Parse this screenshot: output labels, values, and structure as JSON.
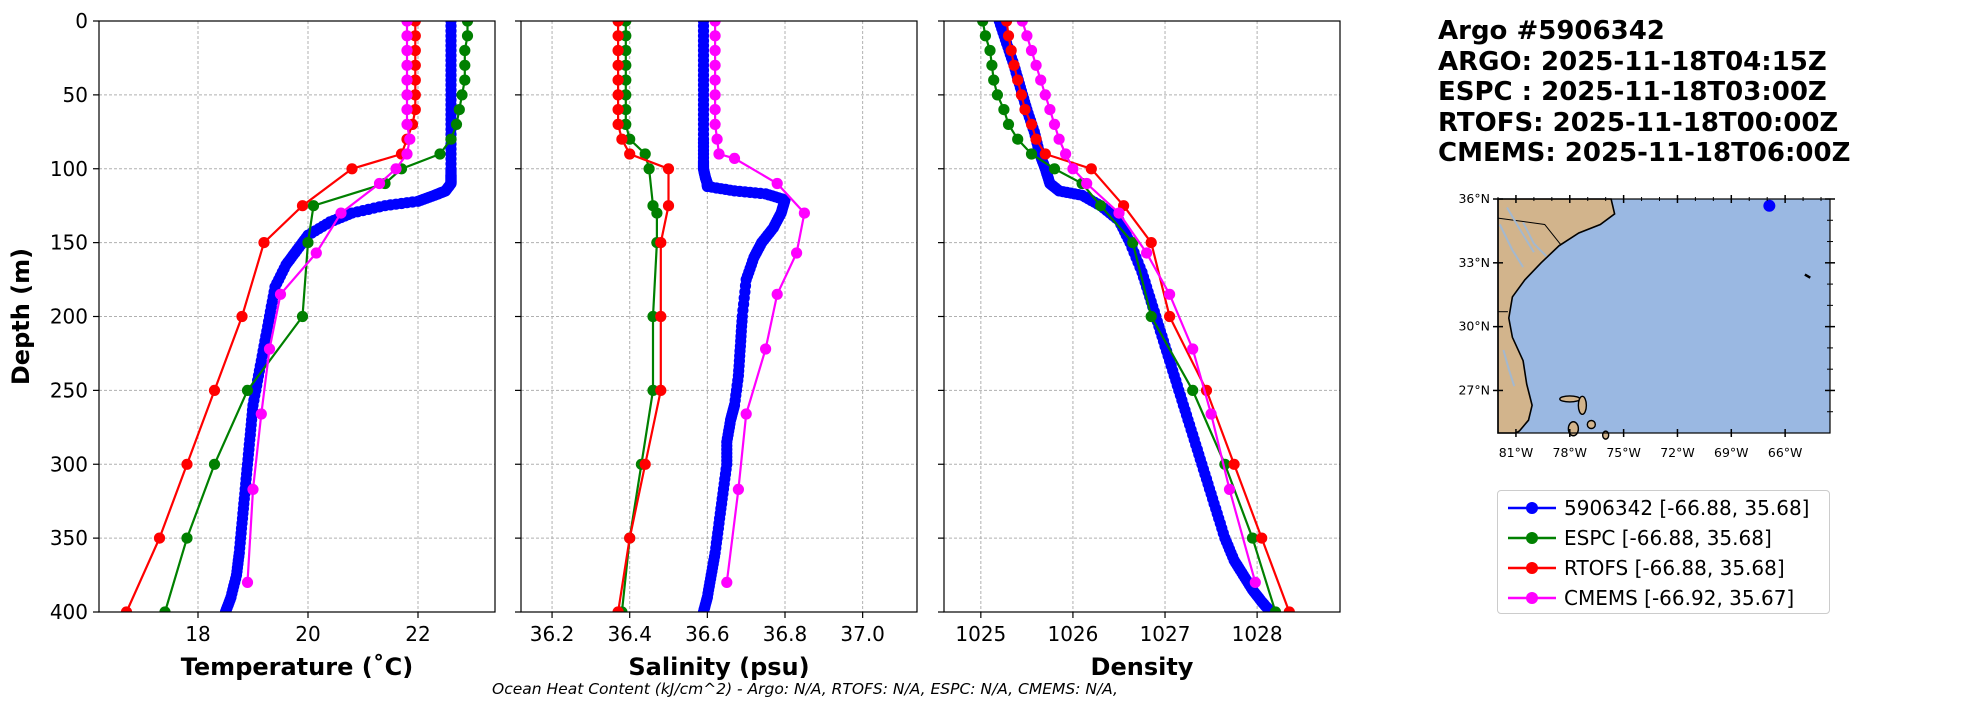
{
  "info": {
    "line1": "Argo #5906342",
    "line2": "ARGO: 2025-11-18T04:15Z",
    "line3": "ESPC : 2025-11-18T03:00Z",
    "line4": "RTOFS: 2025-11-18T00:00Z",
    "line5": "CMEMS: 2025-11-18T06:00Z"
  },
  "footer": "Ocean Heat Content (kJ/cm^2) - Argo: N/A,  RTOFS: N/A,  ESPC: N/A,  CMEMS: N/A,",
  "colors": {
    "argo": "#0000ff",
    "espc": "#008000",
    "rtofs": "#ff0000",
    "cmems": "#ff00ff",
    "land": "#d2b48c",
    "ocean": "#9ab8e2"
  },
  "legend": [
    {
      "label": "5906342 [-66.88, 35.68]",
      "color": "#0000ff"
    },
    {
      "label": "ESPC [-66.88, 35.68]",
      "color": "#008000"
    },
    {
      "label": "RTOFS [-66.88, 35.68]",
      "color": "#ff0000"
    },
    {
      "label": "CMEMS [-66.92, 35.67]",
      "color": "#ff00ff"
    }
  ],
  "chart_data": [
    {
      "type": "line",
      "title": "",
      "xlabel": "Temperature (˚C)",
      "ylabel": "Depth (m)",
      "xlim": [
        16.2,
        23.4
      ],
      "ylim": [
        400,
        0
      ],
      "xticks": [
        "18",
        "20",
        "22"
      ],
      "xtick_values": [
        18,
        20,
        22
      ],
      "yticks": [
        "0",
        "50",
        "100",
        "150",
        "200",
        "250",
        "300",
        "350",
        "400"
      ],
      "ytick_values": [
        0,
        50,
        100,
        150,
        200,
        250,
        300,
        350,
        400
      ],
      "grid": true,
      "series": [
        {
          "name": "5906342",
          "color": "#0000ff",
          "dense": true,
          "x": [
            22.6,
            22.6,
            22.6,
            22.6,
            22.6,
            22.6,
            22.6,
            22.6,
            22.6,
            22.6,
            22.5,
            22.3,
            22.0,
            21.4,
            20.8,
            20.4,
            20.0,
            19.8,
            19.6,
            19.4,
            19.3,
            19.2,
            19.1,
            19.0,
            18.95,
            18.9,
            18.85,
            18.8,
            18.75,
            18.7,
            18.6,
            18.5
          ],
          "y": [
            0,
            20,
            40,
            60,
            80,
            100,
            104,
            106,
            108,
            110,
            115,
            118,
            122,
            125,
            130,
            136,
            145,
            155,
            165,
            180,
            200,
            220,
            240,
            260,
            280,
            300,
            320,
            340,
            360,
            375,
            390,
            400
          ]
        },
        {
          "name": "ESPC",
          "color": "#008000",
          "dense": false,
          "x": [
            22.9,
            22.9,
            22.85,
            22.85,
            22.85,
            22.8,
            22.75,
            22.7,
            22.6,
            22.4,
            21.7,
            21.4,
            20.1,
            20.0,
            19.9,
            18.9,
            18.3,
            17.8,
            17.4
          ],
          "y": [
            0,
            10,
            20,
            30,
            40,
            50,
            60,
            70,
            80,
            90,
            100,
            110,
            125,
            150,
            200,
            250,
            300,
            350,
            400
          ]
        },
        {
          "name": "RTOFS",
          "color": "#ff0000",
          "dense": false,
          "x": [
            21.95,
            21.95,
            21.95,
            21.95,
            21.95,
            21.95,
            21.95,
            21.9,
            21.8,
            21.7,
            20.8,
            19.9,
            19.2,
            18.8,
            18.3,
            17.8,
            17.3,
            16.7
          ],
          "y": [
            0,
            10,
            20,
            30,
            40,
            50,
            60,
            70,
            80,
            90,
            100,
            125,
            150,
            200,
            250,
            300,
            350,
            400
          ]
        },
        {
          "name": "CMEMS",
          "color": "#ff00ff",
          "dense": false,
          "x": [
            21.8,
            21.8,
            21.8,
            21.8,
            21.8,
            21.8,
            21.8,
            21.8,
            21.85,
            21.8,
            21.6,
            21.3,
            20.6,
            20.15,
            19.5,
            19.3,
            19.15,
            19.0,
            18.9
          ],
          "y": [
            0,
            10,
            20,
            30,
            40,
            50,
            60,
            70,
            80,
            90,
            100,
            110,
            130,
            157,
            185,
            222,
            266,
            317,
            380
          ]
        }
      ]
    },
    {
      "type": "line",
      "title": "",
      "xlabel": "Salinity (psu)",
      "ylabel": "",
      "xlim": [
        36.12,
        37.14
      ],
      "ylim": [
        400,
        0
      ],
      "xticks": [
        "36.2",
        "36.4",
        "36.6",
        "36.8",
        "37.0"
      ],
      "xtick_values": [
        36.2,
        36.4,
        36.6,
        36.8,
        37.0
      ],
      "grid": true,
      "series": [
        {
          "name": "5906342",
          "color": "#0000ff",
          "dense": true,
          "x": [
            36.59,
            36.59,
            36.59,
            36.59,
            36.59,
            36.59,
            36.59,
            36.595,
            36.6,
            36.6,
            36.67,
            36.75,
            36.8,
            36.79,
            36.77,
            36.74,
            36.72,
            36.7,
            36.69,
            36.685,
            36.68,
            36.67,
            36.66,
            36.65,
            36.65,
            36.64,
            36.63,
            36.62,
            36.61,
            36.6,
            36.59
          ],
          "y": [
            0,
            20,
            40,
            60,
            80,
            95,
            100,
            106,
            110,
            112,
            115,
            117,
            121,
            130,
            140,
            150,
            160,
            175,
            200,
            220,
            240,
            260,
            270,
            285,
            300,
            320,
            340,
            360,
            375,
            390,
            400
          ]
        },
        {
          "name": "ESPC",
          "color": "#008000",
          "dense": false,
          "x": [
            36.39,
            36.39,
            36.39,
            36.39,
            36.39,
            36.39,
            36.39,
            36.39,
            36.4,
            36.44,
            36.45,
            36.46,
            36.47,
            36.47,
            36.46,
            36.46,
            36.43,
            36.4,
            36.38
          ],
          "y": [
            0,
            10,
            20,
            30,
            40,
            50,
            60,
            70,
            80,
            90,
            100,
            125,
            130,
            150,
            200,
            250,
            300,
            350,
            400
          ]
        },
        {
          "name": "RTOFS",
          "color": "#ff0000",
          "dense": false,
          "x": [
            36.37,
            36.37,
            36.37,
            36.37,
            36.37,
            36.37,
            36.37,
            36.37,
            36.38,
            36.4,
            36.5,
            36.5,
            36.48,
            36.48,
            36.48,
            36.44,
            36.4,
            36.37
          ],
          "y": [
            0,
            10,
            20,
            30,
            40,
            50,
            60,
            70,
            80,
            90,
            100,
            125,
            150,
            200,
            250,
            300,
            350,
            400
          ]
        },
        {
          "name": "CMEMS",
          "color": "#ff00ff",
          "dense": false,
          "x": [
            36.62,
            36.62,
            36.62,
            36.62,
            36.62,
            36.62,
            36.62,
            36.62,
            36.625,
            36.63,
            36.67,
            36.78,
            36.85,
            36.83,
            36.78,
            36.75,
            36.7,
            36.68,
            36.65
          ],
          "y": [
            0,
            10,
            20,
            30,
            40,
            50,
            60,
            70,
            80,
            90,
            93,
            110,
            130,
            157,
            185,
            222,
            266,
            317,
            380
          ]
        }
      ]
    },
    {
      "type": "line",
      "title": "",
      "xlabel": "Density",
      "ylabel": "",
      "xlim": [
        1024.6,
        1028.9
      ],
      "ylim": [
        400,
        0
      ],
      "xticks": [
        "1025",
        "1026",
        "1027",
        "1028"
      ],
      "xtick_values": [
        1025,
        1026,
        1027,
        1028
      ],
      "grid": true,
      "series": [
        {
          "name": "5906342",
          "color": "#0000ff",
          "dense": true,
          "x": [
            1025.2,
            1025.28,
            1025.36,
            1025.43,
            1025.5,
            1025.58,
            1025.64,
            1025.7,
            1025.75,
            1025.85,
            1026.1,
            1026.3,
            1026.5,
            1026.62,
            1026.75,
            1026.85,
            1026.95,
            1027.05,
            1027.15,
            1027.25,
            1027.35,
            1027.45,
            1027.55,
            1027.65,
            1027.75,
            1027.85,
            1027.95,
            1028.05,
            1028.12,
            1028.15
          ],
          "y": [
            0,
            15,
            30,
            45,
            60,
            75,
            90,
            100,
            110,
            115,
            118,
            125,
            135,
            150,
            170,
            190,
            210,
            230,
            250,
            270,
            290,
            310,
            330,
            350,
            365,
            375,
            385,
            393,
            398,
            400
          ]
        },
        {
          "name": "ESPC",
          "color": "#008000",
          "dense": false,
          "x": [
            1025.02,
            1025.05,
            1025.1,
            1025.12,
            1025.14,
            1025.18,
            1025.25,
            1025.3,
            1025.4,
            1025.55,
            1025.8,
            1026.1,
            1026.3,
            1026.65,
            1026.85,
            1027.3,
            1027.65,
            1027.95,
            1028.2
          ],
          "y": [
            0,
            10,
            20,
            30,
            40,
            50,
            60,
            70,
            80,
            90,
            100,
            110,
            125,
            150,
            200,
            250,
            300,
            350,
            400
          ]
        },
        {
          "name": "RTOFS",
          "color": "#ff0000",
          "dense": false,
          "x": [
            1025.28,
            1025.3,
            1025.33,
            1025.36,
            1025.4,
            1025.44,
            1025.48,
            1025.55,
            1025.6,
            1025.7,
            1026.2,
            1026.55,
            1026.85,
            1027.05,
            1027.45,
            1027.75,
            1028.05,
            1028.35
          ],
          "y": [
            0,
            10,
            20,
            30,
            40,
            50,
            60,
            70,
            80,
            90,
            100,
            125,
            150,
            200,
            250,
            300,
            350,
            400
          ]
        },
        {
          "name": "CMEMS",
          "color": "#ff00ff",
          "dense": false,
          "x": [
            1025.45,
            1025.5,
            1025.55,
            1025.6,
            1025.65,
            1025.7,
            1025.75,
            1025.8,
            1025.85,
            1025.92,
            1026.0,
            1026.15,
            1026.5,
            1026.8,
            1027.05,
            1027.3,
            1027.5,
            1027.7,
            1027.98
          ],
          "y": [
            0,
            10,
            20,
            30,
            40,
            50,
            60,
            70,
            80,
            90,
            100,
            110,
            130,
            157,
            185,
            222,
            266,
            317,
            380
          ]
        }
      ]
    }
  ],
  "map": {
    "lat_labels": [
      "36°N",
      "33°N",
      "30°N",
      "27°N"
    ],
    "lon_labels": [
      "81°W",
      "78°W",
      "75°W",
      "72°W",
      "69°W",
      "66°W"
    ],
    "float_position": {
      "lon": -66.88,
      "lat": 35.68
    }
  }
}
